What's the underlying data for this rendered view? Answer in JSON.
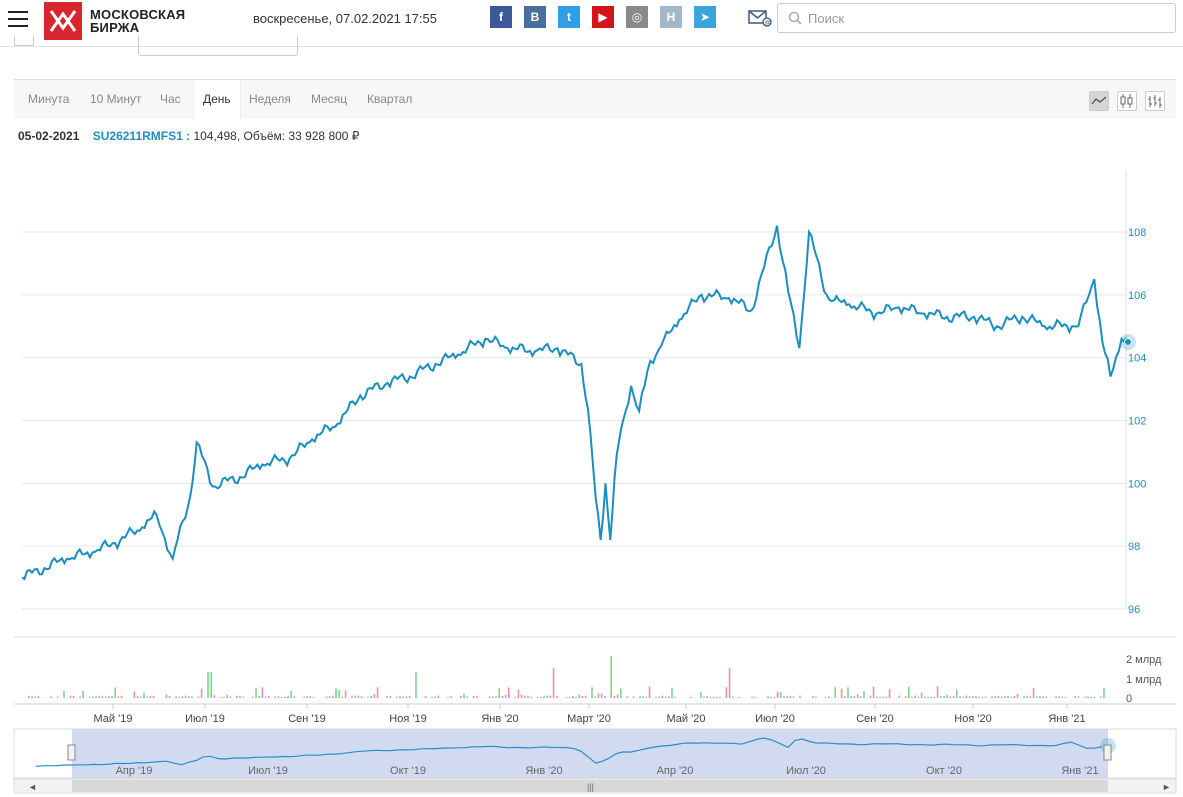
{
  "header": {
    "logo_line1": "МОСКОВСКАЯ",
    "logo_line2": "БИРЖА",
    "datetime": "воскресенье, 07.02.2021 17:55",
    "social": [
      {
        "icon": "facebook-icon",
        "label": "f",
        "color": "#3b5998"
      },
      {
        "icon": "vk-icon",
        "label": "B",
        "color": "#4a6f9c"
      },
      {
        "icon": "twitter-icon",
        "label": "t",
        "color": "#2fa0e6"
      },
      {
        "icon": "youtube-icon",
        "label": "▶",
        "color": "#d4141c"
      },
      {
        "icon": "instagram-icon",
        "label": "◎",
        "color": "#8a8a8a"
      },
      {
        "icon": "h-icon",
        "label": "H",
        "color": "#a0b8c8"
      },
      {
        "icon": "telegram-icon",
        "label": "➤",
        "color": "#3aa4dd"
      }
    ],
    "search_placeholder": "Поиск"
  },
  "tabs": [
    {
      "label": "Минута",
      "active": false
    },
    {
      "label": "10 Минут",
      "active": false
    },
    {
      "label": "Час",
      "active": false
    },
    {
      "label": "День",
      "active": true
    },
    {
      "label": "Неделя",
      "active": false
    },
    {
      "label": "Месяц",
      "active": false
    },
    {
      "label": "Квартал",
      "active": false
    }
  ],
  "chart_types": [
    {
      "icon": "line-chart-icon",
      "active": true
    },
    {
      "icon": "candlestick-icon",
      "active": false
    },
    {
      "icon": "ohlc-icon",
      "active": false
    }
  ],
  "info": {
    "date": "05-02-2021",
    "ticker": "SU26211RMFS1 :",
    "value": " 104,498, Объём: 33 928 800 ₽"
  },
  "chart_data": {
    "type": "line",
    "ylim": [
      96,
      109
    ],
    "y_ticks": [
      "96",
      "98",
      "100",
      "102",
      "104",
      "106",
      "108"
    ],
    "x_ticks": [
      "Май '19",
      "Июл '19",
      "Сен '19",
      "Ноя '19",
      "Янв '20",
      "Март '20",
      "Май '20",
      "Июл '20",
      "Сен '20",
      "Ноя '20",
      "Янв '21"
    ],
    "volume_ticks": [
      "0",
      "1 млрд",
      "2 млрд"
    ],
    "navigator_ticks": [
      "Апр '19",
      "Июл '19",
      "Окт '19",
      "Янв '20",
      "Апр '20",
      "Июл '20",
      "Окт '20",
      "Янв '21"
    ],
    "series": [
      {
        "x": [
          "2019-03-18",
          "2019-04-01",
          "2019-04-15",
          "2019-05-01",
          "2019-05-15",
          "2019-06-01",
          "2019-06-10",
          "2019-06-20",
          "2019-07-01",
          "2019-07-05",
          "2019-07-15",
          "2019-08-01",
          "2019-08-15",
          "2019-09-01",
          "2019-09-15",
          "2019-10-01",
          "2019-10-15",
          "2019-11-01",
          "2019-11-15",
          "2019-12-01",
          "2019-12-15",
          "2020-01-01",
          "2020-01-15",
          "2020-02-01",
          "2020-02-15",
          "2020-03-01",
          "2020-03-05",
          "2020-03-10",
          "2020-03-13",
          "2020-03-16",
          "2020-03-19",
          "2020-03-23",
          "2020-03-27",
          "2020-04-01",
          "2020-04-06",
          "2020-04-13",
          "2020-04-20",
          "2020-05-01",
          "2020-05-15",
          "2020-06-01",
          "2020-06-15",
          "2020-07-01",
          "2020-07-08",
          "2020-07-15",
          "2020-07-21",
          "2020-08-01",
          "2020-08-04",
          "2020-08-15",
          "2020-09-01",
          "2020-09-15",
          "2020-10-01",
          "2020-10-15",
          "2020-11-01",
          "2020-11-15",
          "2020-12-01",
          "2020-12-15",
          "2021-01-01",
          "2021-01-05",
          "2021-01-15",
          "2021-01-20",
          "2021-01-25",
          "2021-02-01",
          "2021-02-05"
        ],
        "y": [
          97.0,
          97.3,
          97.6,
          97.8,
          98.1,
          98.6,
          99.0,
          97.6,
          99.6,
          101.3,
          99.9,
          100.2,
          100.6,
          100.8,
          101.4,
          101.9,
          102.8,
          103.2,
          103.4,
          103.8,
          104.1,
          104.6,
          104.3,
          104.2,
          104.3,
          103.8,
          102.4,
          99.5,
          98.2,
          100.0,
          98.2,
          100.9,
          102.0,
          103.1,
          102.3,
          103.9,
          104.4,
          105.2,
          106.0,
          105.9,
          105.5,
          108.2,
          106.1,
          104.3,
          108.0,
          106.0,
          105.8,
          105.7,
          105.4,
          105.6,
          105.4,
          105.3,
          105.3,
          105.0,
          105.3,
          105.0,
          105.0,
          105.0,
          106.5,
          104.5,
          103.4,
          104.6,
          104.5
        ]
      }
    ]
  }
}
